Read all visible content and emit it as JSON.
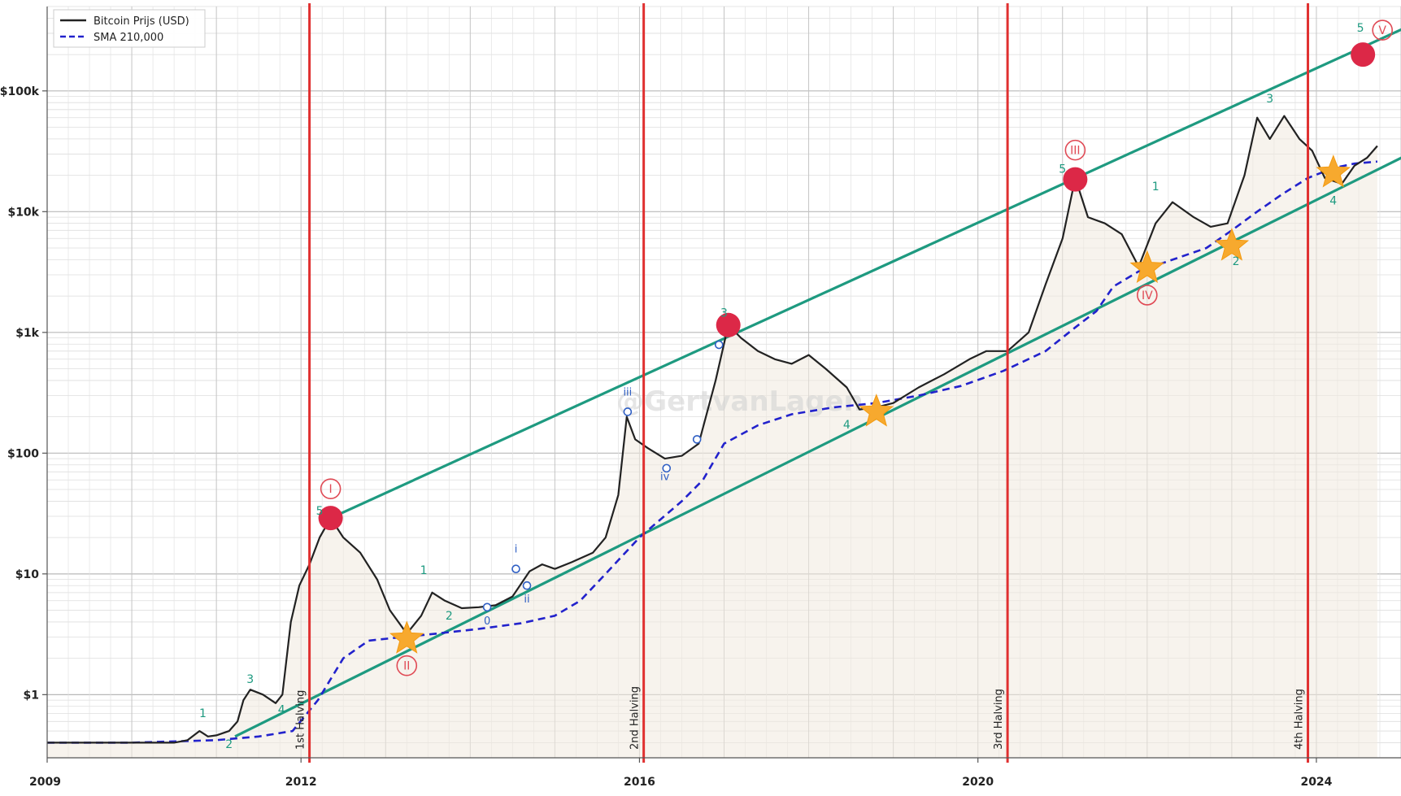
{
  "watermark": "@GertvanLagen",
  "chart_data": {
    "type": "line",
    "ylog": true,
    "ylim": [
      0.3,
      500000
    ],
    "xlim": [
      2009.0,
      2025.0
    ],
    "grid": true,
    "legend_position": "top-left",
    "y_ticks": [
      {
        "value": 1,
        "label": "$1"
      },
      {
        "value": 10,
        "label": "$10"
      },
      {
        "value": 100,
        "label": "$100"
      },
      {
        "value": 1000,
        "label": "$1k"
      },
      {
        "value": 10000,
        "label": "$10k"
      },
      {
        "value": 100000,
        "label": "$100k"
      }
    ],
    "x_ticks": [
      {
        "value": 2009.0,
        "label": "2009"
      },
      {
        "value": 2012.0,
        "label": "2012"
      },
      {
        "value": 2016.0,
        "label": "2016"
      },
      {
        "value": 2020.0,
        "label": "2020"
      },
      {
        "value": 2024.0,
        "label": "2024"
      }
    ],
    "series": [
      {
        "name": "Bitcoin Prijs (USD)",
        "color": "#222222",
        "style": "solid",
        "points": [
          [
            2009.0,
            0.4
          ],
          [
            2009.4,
            0.4
          ],
          [
            2010.5,
            0.4
          ],
          [
            2010.66,
            0.42
          ],
          [
            2010.8,
            0.5
          ],
          [
            2010.84,
            0.48
          ],
          [
            2010.9,
            0.45
          ],
          [
            2011.0,
            0.46
          ],
          [
            2011.15,
            0.5
          ],
          [
            2011.25,
            0.6
          ],
          [
            2011.32,
            0.9
          ],
          [
            2011.4,
            1.1
          ],
          [
            2011.55,
            1.0
          ],
          [
            2011.7,
            0.85
          ],
          [
            2011.78,
            1.0
          ],
          [
            2011.88,
            4.0
          ],
          [
            2011.98,
            8.0
          ],
          [
            2012.1,
            12.0
          ],
          [
            2012.22,
            20.0
          ],
          [
            2012.35,
            29.0
          ],
          [
            2012.5,
            20.0
          ],
          [
            2012.7,
            15.0
          ],
          [
            2012.9,
            9.0
          ],
          [
            2013.05,
            5.0
          ],
          [
            2013.25,
            3.2
          ],
          [
            2013.42,
            4.5
          ],
          [
            2013.55,
            7.0
          ],
          [
            2013.7,
            6.0
          ],
          [
            2013.9,
            5.2
          ],
          [
            2014.1,
            5.3
          ],
          [
            2014.3,
            5.5
          ],
          [
            2014.5,
            6.5
          ],
          [
            2014.7,
            10.5
          ],
          [
            2014.85,
            12.0
          ],
          [
            2015.0,
            11.0
          ],
          [
            2015.2,
            12.5
          ],
          [
            2015.45,
            15.0
          ],
          [
            2015.6,
            20.0
          ],
          [
            2015.75,
            45.0
          ],
          [
            2015.85,
            200.0
          ],
          [
            2015.95,
            130.0
          ],
          [
            2016.1,
            110.0
          ],
          [
            2016.3,
            90.0
          ],
          [
            2016.5,
            95.0
          ],
          [
            2016.7,
            120.0
          ],
          [
            2016.9,
            400.0
          ],
          [
            2017.05,
            1150.0
          ],
          [
            2017.2,
            900.0
          ],
          [
            2017.4,
            700.0
          ],
          [
            2017.6,
            600.0
          ],
          [
            2017.8,
            550.0
          ],
          [
            2018.0,
            650.0
          ],
          [
            2018.2,
            500.0
          ],
          [
            2018.45,
            350.0
          ],
          [
            2018.6,
            230.0
          ],
          [
            2018.8,
            240.0
          ],
          [
            2019.0,
            260.0
          ],
          [
            2019.3,
            350.0
          ],
          [
            2019.6,
            450.0
          ],
          [
            2019.9,
            600.0
          ],
          [
            2020.1,
            700.0
          ],
          [
            2020.35,
            700.0
          ],
          [
            2020.6,
            1000.0
          ],
          [
            2020.8,
            2500.0
          ],
          [
            2021.0,
            6000.0
          ],
          [
            2021.15,
            19000.0
          ],
          [
            2021.3,
            9000.0
          ],
          [
            2021.5,
            8000.0
          ],
          [
            2021.7,
            6500.0
          ],
          [
            2021.9,
            3500.0
          ],
          [
            2022.1,
            8000.0
          ],
          [
            2022.3,
            12000.0
          ],
          [
            2022.55,
            9000.0
          ],
          [
            2022.75,
            7500.0
          ],
          [
            2022.95,
            8000.0
          ],
          [
            2023.15,
            20000.0
          ],
          [
            2023.3,
            60000.0
          ],
          [
            2023.45,
            40000.0
          ],
          [
            2023.62,
            62000.0
          ],
          [
            2023.8,
            40000.0
          ],
          [
            2023.95,
            32000.0
          ],
          [
            2024.1,
            19000.0
          ],
          [
            2024.3,
            17000.0
          ],
          [
            2024.45,
            24000.0
          ],
          [
            2024.6,
            28000.0
          ],
          [
            2024.72,
            35000.0
          ]
        ]
      },
      {
        "name": "SMA 210,000",
        "color": "#2222cc",
        "style": "dashed",
        "points": [
          [
            2009.0,
            0.4
          ],
          [
            2010.0,
            0.4
          ],
          [
            2011.0,
            0.42
          ],
          [
            2011.5,
            0.45
          ],
          [
            2011.9,
            0.5
          ],
          [
            2012.2,
            0.9
          ],
          [
            2012.5,
            2.0
          ],
          [
            2012.8,
            2.8
          ],
          [
            2013.2,
            3.0
          ],
          [
            2013.6,
            3.2
          ],
          [
            2014.1,
            3.5
          ],
          [
            2014.6,
            3.9
          ],
          [
            2015.0,
            4.5
          ],
          [
            2015.3,
            6.0
          ],
          [
            2015.6,
            10.0
          ],
          [
            2016.0,
            20.0
          ],
          [
            2016.5,
            40.0
          ],
          [
            2016.75,
            60.0
          ],
          [
            2017.0,
            120.0
          ],
          [
            2017.4,
            170.0
          ],
          [
            2017.8,
            210.0
          ],
          [
            2018.3,
            240.0
          ],
          [
            2018.8,
            260.0
          ],
          [
            2019.3,
            300.0
          ],
          [
            2019.8,
            360.0
          ],
          [
            2020.3,
            480.0
          ],
          [
            2020.8,
            700.0
          ],
          [
            2021.15,
            1100.0
          ],
          [
            2021.4,
            1500.0
          ],
          [
            2021.6,
            2400.0
          ],
          [
            2021.9,
            3200.0
          ],
          [
            2022.3,
            4000.0
          ],
          [
            2022.7,
            5000.0
          ],
          [
            2023.0,
            7000.0
          ],
          [
            2023.3,
            10000.0
          ],
          [
            2023.6,
            14000.0
          ],
          [
            2023.9,
            19000.0
          ],
          [
            2024.2,
            23000.0
          ],
          [
            2024.45,
            25000.0
          ],
          [
            2024.72,
            26000.0
          ]
        ]
      }
    ],
    "channel_lines": [
      {
        "color": "#1e9a80",
        "points": [
          [
            2012.35,
            29.0
          ],
          [
            2025.6,
            500000.0
          ]
        ]
      },
      {
        "color": "#1e9a80",
        "points": [
          [
            2011.22,
            0.45
          ],
          [
            2025.6,
            45000.0
          ]
        ]
      }
    ],
    "halvings": [
      {
        "x": 2012.1,
        "label": "1st Halving"
      },
      {
        "x": 2016.05,
        "label": "2nd Halving"
      },
      {
        "x": 2020.35,
        "label": "3rd Halving"
      },
      {
        "x": 2023.9,
        "label": "4th Halving"
      }
    ],
    "tops": [
      {
        "x": 2012.35,
        "y": 29.0,
        "label": "I",
        "label_pos": "above"
      },
      {
        "x": 2017.05,
        "y": 1150.0,
        "label": "",
        "label_pos": "above"
      },
      {
        "x": 2021.15,
        "y": 18500.0,
        "label": "III",
        "label_pos": "above"
      },
      {
        "x": 2024.55,
        "y": 200000.0,
        "label": "V",
        "label_pos": "right"
      }
    ],
    "stars": [
      {
        "x": 2013.25,
        "y": 2.9,
        "label": "II"
      },
      {
        "x": 2018.8,
        "y": 220.0,
        "label": ""
      },
      {
        "x": 2022.0,
        "y": 3400.0,
        "label": "IV"
      },
      {
        "x": 2023.0,
        "y": 5200.0,
        "label": ""
      },
      {
        "x": 2024.2,
        "y": 21000.0,
        "label": ""
      }
    ],
    "wave_labels": [
      {
        "text": "1",
        "x": 2010.84,
        "y": 0.65
      },
      {
        "text": "2",
        "x": 2011.15,
        "y": 0.36
      },
      {
        "text": "3",
        "x": 2011.4,
        "y": 1.25
      },
      {
        "text": "4",
        "x": 2011.77,
        "y": 0.7
      },
      {
        "text": "5",
        "x": 2012.22,
        "y": 31.0
      },
      {
        "text": "1",
        "x": 2013.45,
        "y": 10.0
      },
      {
        "text": "2",
        "x": 2013.75,
        "y": 4.2
      },
      {
        "text": "3",
        "x": 2017.0,
        "y": 1350.0
      },
      {
        "text": "4",
        "x": 2018.45,
        "y": 160.0
      },
      {
        "text": "5",
        "x": 2021.0,
        "y": 21000.0
      },
      {
        "text": "1",
        "x": 2022.1,
        "y": 15000.0
      },
      {
        "text": "2",
        "x": 2023.05,
        "y": 3600.0
      },
      {
        "text": "3",
        "x": 2023.45,
        "y": 80000.0
      },
      {
        "text": "4",
        "x": 2024.2,
        "y": 11500.0
      },
      {
        "text": "5",
        "x": 2024.52,
        "y": 310000.0
      }
    ],
    "subwave_labels": [
      {
        "text": "0",
        "x": 2014.2,
        "y": 3.8
      },
      {
        "text": "i",
        "x": 2014.54,
        "y": 15.0
      },
      {
        "text": "ii",
        "x": 2014.67,
        "y": 5.8
      },
      {
        "text": "iii",
        "x": 2015.86,
        "y": 300.0
      },
      {
        "text": "iv",
        "x": 2016.3,
        "y": 60.0
      }
    ],
    "subwave_points": [
      {
        "x": 2014.2,
        "y": 5.3
      },
      {
        "x": 2014.54,
        "y": 11.0
      },
      {
        "x": 2014.67,
        "y": 8.0
      },
      {
        "x": 2015.86,
        "y": 220.0
      },
      {
        "x": 2016.32,
        "y": 75.0
      },
      {
        "x": 2016.68,
        "y": 130.0
      },
      {
        "x": 2016.94,
        "y": 790.0
      }
    ]
  }
}
